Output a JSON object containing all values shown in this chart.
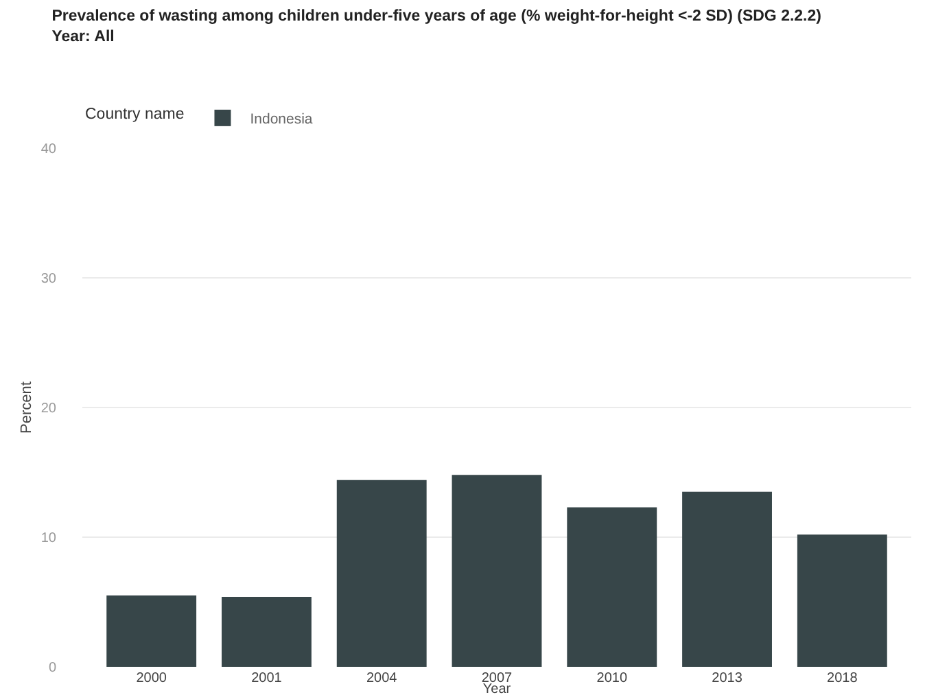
{
  "chart_data": {
    "type": "bar",
    "title": "Prevalence of wasting among children under-five years of age (% weight-for-height <-2 SD) (SDG 2.2.2)",
    "subtitle": "Year: All",
    "xlabel": "Year",
    "ylabel": "Percent",
    "legend_title": "Country name",
    "categories": [
      "2000",
      "2001",
      "2004",
      "2007",
      "2010",
      "2013",
      "2018"
    ],
    "series": [
      {
        "name": "Indonesia",
        "color": "#374649",
        "values": [
          5.5,
          5.4,
          14.4,
          14.8,
          12.3,
          13.5,
          10.2
        ]
      }
    ],
    "ylim": [
      0,
      40
    ],
    "yticks": [
      0,
      10,
      20,
      30,
      40
    ],
    "grid": "y",
    "legend": "top left"
  }
}
